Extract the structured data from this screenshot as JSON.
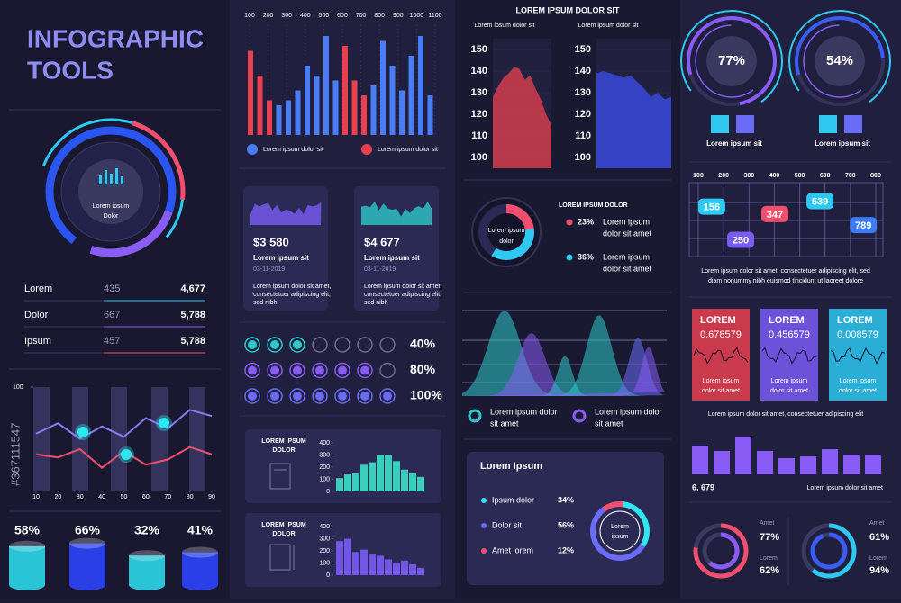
{
  "side_id": "#367111547",
  "title": [
    "INFOGRAPHIC",
    "TOOLS"
  ],
  "ring_label": [
    "Lorem ipsum",
    "Dolor"
  ],
  "table": [
    [
      "Lorem",
      "435",
      "4,677"
    ],
    [
      "Dolor",
      "667",
      "5,788"
    ],
    [
      "Ipsum",
      "457",
      "5,788"
    ]
  ],
  "line_chart": {
    "type": "line",
    "xlim": [
      10,
      90
    ],
    "xticks": [
      10,
      20,
      30,
      40,
      50,
      60,
      70,
      80,
      90
    ],
    "ylim": [
      0,
      100
    ],
    "yticks": [
      100
    ],
    "x": [
      10,
      20,
      30,
      40,
      50,
      60,
      70,
      80,
      90
    ],
    "series": [
      {
        "color": "#8b7cf8",
        "values": [
          55,
          65,
          50,
          62,
          52,
          70,
          60,
          78,
          72
        ]
      },
      {
        "color": "#f0506e",
        "values": [
          35,
          32,
          40,
          22,
          38,
          25,
          30,
          42,
          35
        ]
      }
    ]
  },
  "cylinders": {
    "type": "bar",
    "values": [
      58,
      66,
      32,
      41
    ],
    "value_labels": [
      "58%",
      "66%",
      "32%",
      "41%"
    ],
    "colors": [
      "#29c5d6",
      "#2b3fe6",
      "#29c5d6",
      "#2b3fe6"
    ]
  },
  "bar_chart": {
    "type": "bar",
    "xlim": [
      100,
      1100
    ],
    "xticks": [
      100,
      200,
      300,
      400,
      500,
      600,
      700,
      800,
      900,
      1000,
      1100
    ],
    "ylim": [
      0,
      100
    ],
    "series": [
      {
        "name": "Lorem ipsum dolor sit",
        "color": "#4a7cf6",
        "values": [
          30,
          35,
          45,
          70,
          60,
          100,
          55,
          50,
          95,
          70,
          45,
          80,
          100,
          40
        ]
      },
      {
        "name": "Lorem ipsum dolor sit",
        "color": "#e8404f",
        "values": [
          85,
          60,
          35,
          90,
          55,
          40
        ]
      }
    ]
  },
  "cards": [
    {
      "amount": "$3 580",
      "name": "Lorem ipsum sit",
      "date": "03-11-2019",
      "text": [
        "Lorem ipsum dolor sit amet,",
        "consectetuer adipiscing elit,",
        "sed nibh"
      ]
    },
    {
      "amount": "$4 677",
      "name": "Lorem ipsum sit",
      "date": "03-11-2019",
      "text": [
        "Lorem ipsum dolor sit amet,",
        "consectetuer adipiscing elit,",
        "sed nibh"
      ]
    }
  ],
  "dots": {
    "values": [
      40,
      80,
      100
    ],
    "value_labels": [
      "40%",
      "80%",
      "100%"
    ]
  },
  "mini_charts": [
    {
      "type": "bar",
      "title": [
        "LOREM IPSUM",
        "DOLOR"
      ],
      "ylim": [
        0,
        400
      ],
      "yticks": [
        0,
        100,
        200,
        300,
        400
      ],
      "color": "#3ee0c8",
      "values": [
        110,
        140,
        150,
        220,
        240,
        300,
        300,
        250,
        180,
        150,
        120
      ]
    },
    {
      "type": "bar",
      "title": [
        "LOREM IPSUM",
        "DOLOR"
      ],
      "ylim": [
        0,
        400
      ],
      "yticks": [
        0,
        100,
        200,
        300,
        400
      ],
      "color": "#7a5cf5",
      "values": [
        280,
        300,
        190,
        210,
        170,
        160,
        130,
        100,
        120,
        90,
        60
      ]
    }
  ],
  "area_charts": {
    "title": "LOREM IPSUM DOLOR SIT",
    "panels": [
      {
        "type": "area",
        "label": "Lorem ipsum dolor sit",
        "color": "#e8404f",
        "ylim": [
          95,
          155
        ],
        "yticks": [
          100,
          110,
          120,
          130,
          140,
          150
        ],
        "values": [
          128,
          133,
          137,
          139,
          142,
          141,
          136,
          138,
          132,
          127,
          120,
          115
        ]
      },
      {
        "type": "area",
        "label": "Lorem ipsum dolor sit",
        "color": "#3b4ef0",
        "ylim": [
          95,
          155
        ],
        "yticks": [
          100,
          110,
          120,
          130,
          140,
          150
        ],
        "values": [
          139,
          140,
          139,
          138,
          137,
          138,
          135,
          132,
          128,
          130,
          127,
          128
        ]
      }
    ]
  },
  "donut": {
    "type": "pie",
    "title": "LOREM IPSUM DOLOR",
    "center": [
      "Lorem ipsum",
      "dolor"
    ],
    "items": [
      {
        "color": "#f0506e",
        "value": 23,
        "label": "23%",
        "text": [
          "Lorem ipsum",
          "dolor sit amet"
        ]
      },
      {
        "color": "#2ec8f0",
        "value": 36,
        "label": "36%",
        "text": [
          "Lorem ipsum",
          "dolor sit amet"
        ]
      }
    ]
  },
  "wave_legend": [
    [
      "Lorem ipsum dolor",
      "sit amet"
    ],
    [
      "Lorem ipsum dolor",
      "sit amet"
    ]
  ],
  "panel": {
    "type": "pie",
    "title": "Lorem Ipsum",
    "center": [
      "Lorem",
      "ipsum"
    ],
    "items": [
      {
        "name": "Ipsum dolor",
        "color": "#2ee6f0",
        "value": 34,
        "label": "34%"
      },
      {
        "name": "Dolor sit",
        "color": "#6a6cf6",
        "value": 56,
        "label": "56%"
      },
      {
        "name": "Amet lorem",
        "color": "#f0506e",
        "value": 12,
        "label": "12%"
      }
    ]
  },
  "gauges": [
    {
      "value": 77,
      "label": "77%",
      "caption": "Lorem ipsum sit"
    },
    {
      "value": 54,
      "label": "54%",
      "caption": "Lorem ipsum sit"
    }
  ],
  "scatter": {
    "type": "scatter",
    "xlim": [
      100,
      800
    ],
    "xticks": [
      100,
      200,
      300,
      400,
      500,
      600,
      700,
      800
    ],
    "ylim": [
      0,
      4
    ],
    "points": [
      {
        "x": 153,
        "y": 2.7,
        "value": 156,
        "color": "#2ec8f0"
      },
      {
        "x": 402,
        "y": 2.3,
        "value": 347,
        "color": "#f0506e"
      },
      {
        "x": 580,
        "y": 3,
        "value": 539,
        "color": "#2ec8f0"
      },
      {
        "x": 267,
        "y": 0.9,
        "value": 250,
        "color": "#7a5cf5"
      },
      {
        "x": 751,
        "y": 1.7,
        "value": 789,
        "color": "#3b7bf5"
      }
    ]
  },
  "scatter_text": [
    "Lorem ipsum dolor sit amet, consectetuer adipiscing elit, sed",
    "diam nonummy nibh euismod tincidunt ut laoreet dolore"
  ],
  "stat_cards": [
    {
      "title": "LOREM",
      "value": "0.678579",
      "color": "#e8404f",
      "text": [
        "Lorem ipsum",
        "dolor sit amet"
      ]
    },
    {
      "title": "LOREM",
      "value": "0.456579",
      "color": "#7a5cf5",
      "text": [
        "Lorem ipsum",
        "dolor sit amet"
      ]
    },
    {
      "title": "LOREM",
      "value": "0.008579",
      "color": "#2ec8f0",
      "text": [
        "Lorem ipsum",
        "dolor sit amet"
      ]
    }
  ],
  "stat_text": "Lorem ipsum dolor sit amet, consectetuer adipiscing elit",
  "bars2": {
    "type": "bar",
    "ylim": [
      0,
      50
    ],
    "color": "#8a5cf6",
    "values": [
      32,
      26,
      42,
      26,
      18,
      20,
      28,
      22,
      22
    ],
    "total": "6, 679",
    "caption": "Lorem ipsum dolor sit amet"
  },
  "rings": [
    {
      "items": [
        {
          "name": "Amet",
          "value": 77,
          "label": "77%",
          "color": "#f0506e"
        },
        {
          "name": "Lorem",
          "value": 62,
          "label": "62%",
          "color": "#8a5cf6"
        }
      ]
    },
    {
      "items": [
        {
          "name": "Amet",
          "value": 61,
          "label": "61%",
          "color": "#2ec8f0"
        },
        {
          "name": "Lorem",
          "value": 94,
          "label": "94%",
          "color": "#3b5cf5"
        }
      ]
    }
  ]
}
